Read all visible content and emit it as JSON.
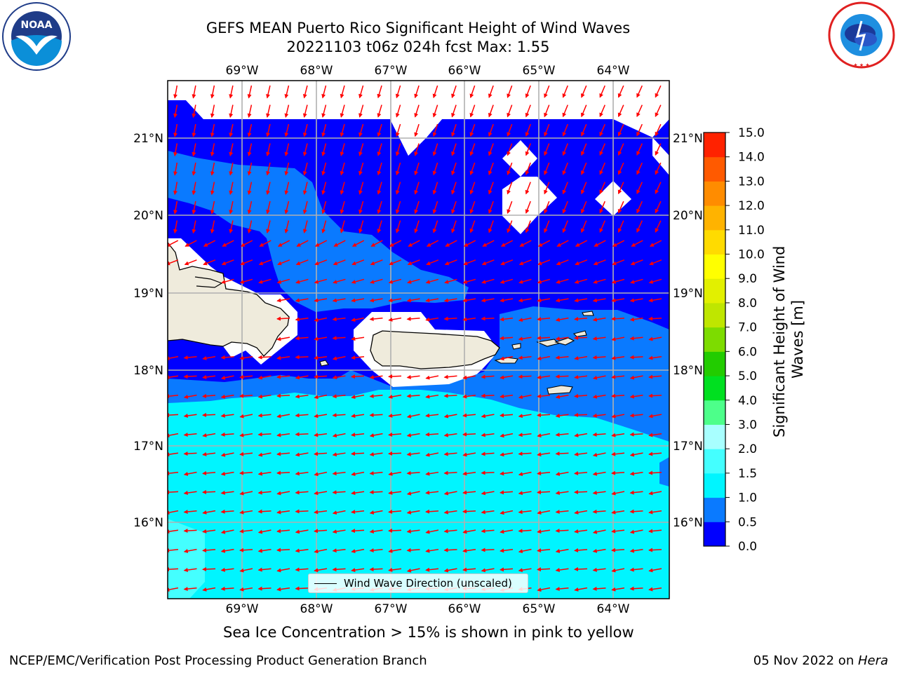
{
  "header": {
    "title_line1": "GEFS MEAN Puerto Rico Significant Height of Wind Waves",
    "title_line2": "20221103 t06z 024h fcst   Max: 1.55"
  },
  "map": {
    "lon_ticks": [
      "69°W",
      "68°W",
      "67°W",
      "66°W",
      "65°W",
      "64°W"
    ],
    "lat_ticks": [
      "21°N",
      "20°N",
      "19°N",
      "18°N",
      "17°N",
      "16°N"
    ],
    "legend_label": "Wind Wave Direction (unscaled)",
    "arrow_color": "#ff0000",
    "land_color": "#efebdc",
    "vector_field_direction": "toward southwest / west"
  },
  "colorbar": {
    "label": "Significant Height of Wind Waves [m]",
    "tick_labels": [
      "0.0",
      "0.5",
      "1.0",
      "1.5",
      "2.0",
      "3.0",
      "4.0",
      "5.0",
      "6.0",
      "7.0",
      "8.0",
      "9.0",
      "10.0",
      "11.0",
      "12.0",
      "13.0",
      "14.0",
      "15.0"
    ],
    "colors": [
      "#0000ff",
      "#0a7aff",
      "#00f5ff",
      "#44ffff",
      "#a8ffff",
      "#4dff8a",
      "#00e020",
      "#22cc00",
      "#7ddc00",
      "#bfe600",
      "#e2f000",
      "#ffff00",
      "#ffdb00",
      "#ffb300",
      "#ff8c00",
      "#ff5a00",
      "#ff2200"
    ]
  },
  "notes": {
    "sea_ice": "Sea Ice Concentration > 15% is shown in pink to yellow"
  },
  "footer": {
    "left": "NCEP/EMC/Verification Post Processing Product Generation Branch",
    "right_date": "05 Nov 2022 on ",
    "right_host": "Hera"
  },
  "logos": {
    "left": "NOAA",
    "right": "NATIONAL WEATHER SERVICE"
  }
}
